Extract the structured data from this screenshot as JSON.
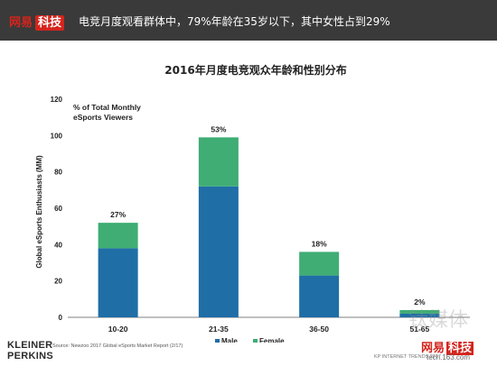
{
  "banner": {
    "brand_part1": "网易",
    "brand_part2": "科技",
    "headline": "电竞月度观看群体中，79%年龄在35岁以下，其中女性占到29%"
  },
  "chart_data": {
    "type": "bar",
    "stacked": true,
    "title": "2016年月度电竞观众年龄和性别分布",
    "ylabel": "Global eSports Enthusiasts (MM)",
    "xlabel": "",
    "annotation": [
      "% of Total Monthly",
      "eSports Viewers"
    ],
    "categories": [
      "10-20",
      "21-35",
      "36-50",
      "51-65"
    ],
    "series": [
      {
        "name": "Male",
        "values": [
          38,
          72,
          23,
          2
        ],
        "color": "#1f6ea6"
      },
      {
        "name": "Female",
        "values": [
          14,
          27,
          13,
          2
        ],
        "color": "#3fad74"
      }
    ],
    "percent_labels": [
      "27%",
      "53%",
      "18%",
      "2%"
    ],
    "ylim": [
      0,
      120
    ],
    "yticks": [
      0,
      20,
      40,
      60,
      80,
      100,
      120
    ],
    "grid": false,
    "legend_position": "bottom"
  },
  "footer": {
    "source": "Source: Newzoo 2017 Global eSports Market Report (2/17)",
    "logo_line1": "KLEINER",
    "logo_line2": "PERKINS",
    "right_text": "KP INTERNET TRENDS 2017",
    "watermark_media": "钛媒体",
    "watermark_netease1": "网易",
    "watermark_netease2": "科技",
    "watermark_url": "tech.163.com"
  }
}
